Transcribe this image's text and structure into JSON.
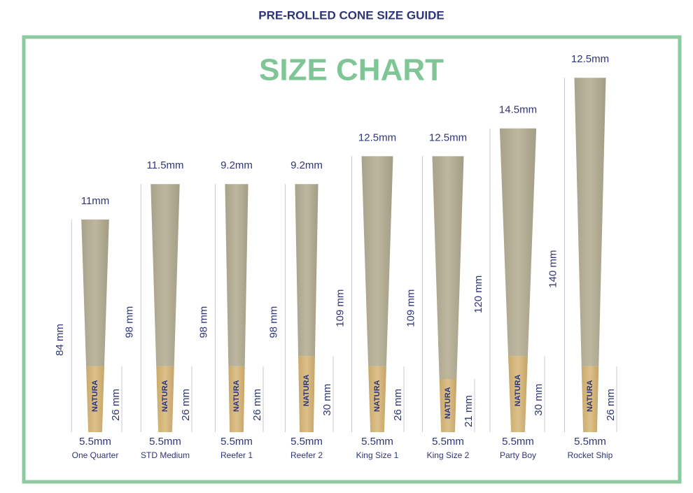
{
  "header": {
    "title": "PRE-ROLLED CONE SIZE GUIDE",
    "heading": "SIZE CHART"
  },
  "brand": "NATURA",
  "cones": [
    {
      "name": "One Quarter",
      "length": "84 mm",
      "top_width": "11mm",
      "bottom_width": "5.5mm",
      "filter": "26 mm"
    },
    {
      "name": "STD Medium",
      "length": "98 mm",
      "top_width": "11.5mm",
      "bottom_width": "5.5mm",
      "filter": "26 mm"
    },
    {
      "name": "Reefer 1",
      "length": "98 mm",
      "top_width": "9.2mm",
      "bottom_width": "5.5mm",
      "filter": "26 mm"
    },
    {
      "name": "Reefer 2",
      "length": "98 mm",
      "top_width": "9.2mm",
      "bottom_width": "5.5mm",
      "filter": "30 mm"
    },
    {
      "name": "King Size 1",
      "length": "109 mm",
      "top_width": "12.5mm",
      "bottom_width": "5.5mm",
      "filter": "26 mm"
    },
    {
      "name": "King Size 2",
      "length": "109 mm",
      "top_width": "12.5mm",
      "bottom_width": "5.5mm",
      "filter": "21 mm"
    },
    {
      "name": "Party Boy",
      "length": "120 mm",
      "top_width": "14.5mm",
      "bottom_width": "5.5mm",
      "filter": "30 mm"
    },
    {
      "name": "Rocket Ship",
      "length": "140 mm",
      "top_width": "12.5mm",
      "bottom_width": "5.5mm",
      "filter": "26 mm"
    }
  ]
}
